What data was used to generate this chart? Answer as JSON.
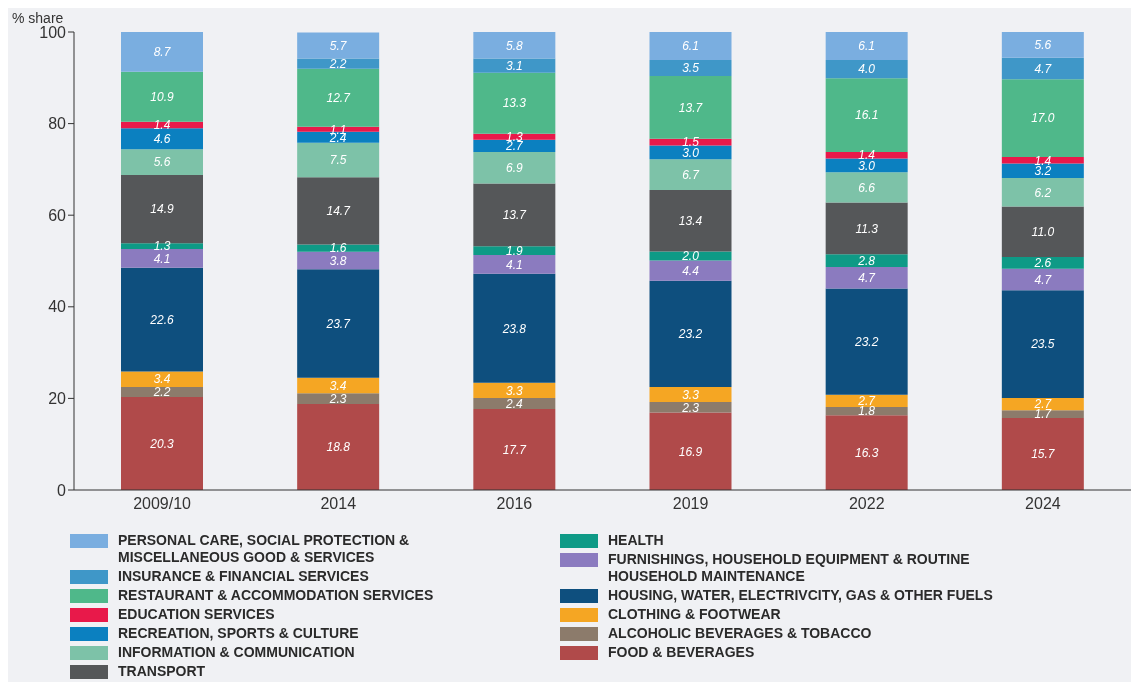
{
  "chart_data": {
    "type": "bar",
    "stacked": true,
    "ylabel": "% share",
    "categories": [
      "2009/10",
      "2014",
      "2016",
      "2019",
      "2022",
      "2024"
    ],
    "ylim": [
      0,
      100
    ],
    "yticks": [
      0,
      20,
      40,
      60,
      80,
      100
    ],
    "grid": false,
    "legend": "bottom",
    "series": [
      {
        "name": "FOOD & BEVERAGES",
        "color": "#b04a4a",
        "values": [
          20.3,
          18.8,
          17.7,
          16.9,
          16.3,
          15.7
        ],
        "value_labels": [
          "20.3",
          "18.8",
          "17.7",
          "16.9",
          "16.3",
          "15.7"
        ]
      },
      {
        "name": "ALCOHOLIC BEVERAGES & TOBACCO",
        "color": "#8c7b6b",
        "values": [
          2.2,
          2.3,
          2.4,
          2.3,
          1.8,
          1.7
        ],
        "value_labels": [
          "2.2",
          "2.3",
          "2.4",
          "2.3",
          "1.8",
          "1.7"
        ]
      },
      {
        "name": "CLOTHING & FOOTWEAR",
        "color": "#f5a623",
        "values": [
          3.4,
          3.4,
          3.3,
          3.3,
          2.7,
          2.7
        ],
        "value_labels": [
          "3.4",
          "3.4",
          "3.3",
          "3.3",
          "2.7",
          "2.7"
        ]
      },
      {
        "name": "HOUSING, WATER, ELECTRIVCITY, GAS & OTHER FUELS",
        "color": "#0e4f7e",
        "values": [
          22.6,
          23.7,
          23.8,
          23.2,
          23.2,
          23.5
        ],
        "value_labels": [
          "22.6",
          "23.7",
          "23.8",
          "23.2",
          "23.2",
          "23.5"
        ]
      },
      {
        "name": "FURNISHINGS, HOUSEHOLD EQUIPMENT & ROUTINE HOUSEHOLD MAINTENANCE",
        "color": "#8b7bbf",
        "values": [
          4.1,
          3.8,
          4.1,
          4.4,
          4.7,
          4.7
        ],
        "value_labels": [
          "4.1",
          "3.8",
          "4.1",
          "4.4",
          "4.7",
          "4.7"
        ]
      },
      {
        "name": "HEALTH",
        "color": "#0e9a86",
        "values": [
          1.3,
          1.6,
          1.9,
          2.0,
          2.8,
          2.6
        ],
        "value_labels": [
          "1.3",
          "1.6",
          "1.9",
          "2.0",
          "2.8",
          "2.6"
        ]
      },
      {
        "name": "TRANSPORT",
        "color": "#555759",
        "values": [
          14.9,
          14.7,
          13.7,
          13.4,
          11.3,
          11.0
        ],
        "value_labels": [
          "14.9",
          "14.7",
          "13.7",
          "13.4",
          "11.3",
          "11.0"
        ]
      },
      {
        "name": "INFORMATION & COMMUNICATION",
        "color": "#7dc2a8",
        "values": [
          5.6,
          7.5,
          6.9,
          6.7,
          6.6,
          6.2
        ],
        "value_labels": [
          "5.6",
          "7.5",
          "6.9",
          "6.7",
          "6.6",
          "6.2"
        ]
      },
      {
        "name": "RECREATION, SPORTS & CULTURE",
        "color": "#0b80c0",
        "values": [
          4.6,
          2.4,
          2.7,
          3.0,
          3.0,
          3.2
        ],
        "value_labels": [
          "4.6",
          "2.4",
          "2.7",
          "3.0",
          "3.0",
          "3.2"
        ]
      },
      {
        "name": "EDUCATION SERVICES",
        "color": "#e8194a",
        "values": [
          1.4,
          1.1,
          1.3,
          1.5,
          1.4,
          1.4
        ],
        "value_labels": [
          "1.4",
          "1.1",
          "1.3",
          "1.5",
          "1.4",
          "1.4"
        ]
      },
      {
        "name": "RESTAURANT & ACCOMMODATION SERVICES",
        "color": "#4fb88a",
        "values": [
          10.9,
          12.7,
          13.3,
          13.7,
          16.1,
          17.0
        ],
        "value_labels": [
          "10.9",
          "12.7",
          "13.3",
          "13.7",
          "16.1",
          "17.0"
        ]
      },
      {
        "name": "INSURANCE & FINANCIAL SERVICES",
        "color": "#3f97c8",
        "values": [
          null,
          2.2,
          3.1,
          3.5,
          4.0,
          4.7
        ],
        "value_labels": [
          null,
          "2.2",
          "3.1",
          "3.5",
          "4.0",
          "4.7"
        ]
      },
      {
        "name": "PERSONAL CARE, SOCIAL PROTECTION & MISCELLANEOUS GOOD & SERVICES",
        "color": "#7aaee0",
        "values": [
          8.7,
          5.7,
          5.8,
          6.1,
          6.1,
          5.6
        ],
        "value_labels": [
          "8.7",
          "5.7",
          "5.8",
          "6.1",
          "6.1",
          "5.6"
        ]
      }
    ]
  }
}
